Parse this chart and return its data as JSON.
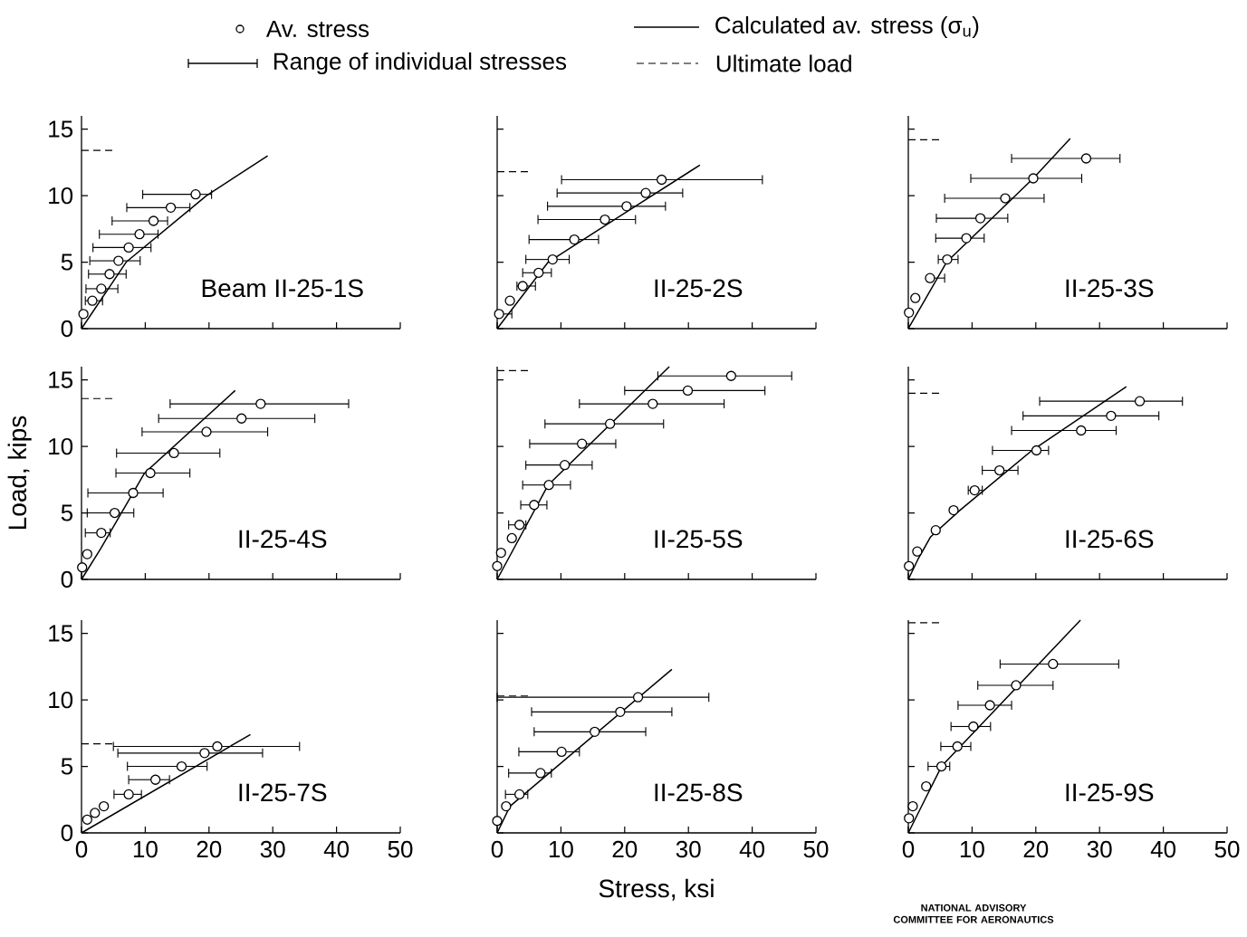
{
  "chart_data": [
    {
      "type": "scatter",
      "title": "Beam II-25-1S",
      "xlim": [
        0,
        50
      ],
      "ylim": [
        0,
        16
      ],
      "xticks": [
        0,
        10,
        20,
        30,
        40,
        50
      ],
      "yticks": [
        0,
        5,
        10,
        15
      ],
      "tick_labels": "y",
      "legend": "top",
      "annotations": [
        "Range of individual stresses"
      ],
      "series": [
        {
          "name": "Av. stress",
          "color": "#000000",
          "marker": "circle",
          "x": [
            0.3,
            1.7,
            3.1,
            4.4,
            5.8,
            7.4,
            9.1,
            11.3,
            14.0,
            17.9
          ],
          "values": [
            1.1,
            2.1,
            3.0,
            4.1,
            5.1,
            6.1,
            7.1,
            8.1,
            9.1,
            10.1
          ],
          "xerrors": [
            null,
            [
              0.6,
              3.3
            ],
            [
              0.7,
              5.7
            ],
            [
              1.1,
              7.0
            ],
            [
              1.3,
              9.2
            ],
            [
              1.8,
              10.9
            ],
            [
              2.8,
              12.0
            ],
            [
              4.8,
              13.5
            ],
            [
              7.1,
              17.0
            ],
            [
              9.6,
              20.4
            ]
          ]
        },
        {
          "name": "Calculated av. stress (σ$_{u}$)",
          "type": "line",
          "color": "#000000",
          "x": [
            0,
            7,
            19.6,
            29.2
          ],
          "values": [
            0,
            5,
            10,
            13
          ]
        }
      ],
      "ref_lines": [
        {
          "axis": "y",
          "value": 13.4,
          "label": "Ultimate load",
          "line_style": "dashed"
        }
      ]
    },
    {
      "type": "scatter",
      "title": "II-25-2S",
      "xlim": [
        0,
        50
      ],
      "ylim": [
        0,
        16
      ],
      "xticks": [
        0,
        10,
        20,
        30,
        40,
        50
      ],
      "yticks": [
        0,
        5,
        10,
        15
      ],
      "tick_labels": false,
      "series": [
        {
          "color": "#000000",
          "marker": "circle",
          "x": [
            0.3,
            2,
            4,
            6.5,
            8.7,
            12.1,
            16.9,
            20.3,
            23.3,
            25.8
          ],
          "values": [
            1.1,
            2.1,
            3.2,
            4.2,
            5.2,
            6.7,
            8.2,
            9.2,
            10.2,
            11.2
          ],
          "xerrors": [
            [
              0,
              2.3
            ],
            null,
            [
              3.1,
              6.0
            ],
            [
              4.0,
              8.5
            ],
            [
              4.5,
              11.3
            ],
            [
              5.0,
              15.9
            ],
            [
              6.4,
              21.7
            ],
            [
              7.9,
              26.4
            ],
            [
              9.4,
              29.1
            ],
            [
              10.1,
              41.6
            ]
          ]
        },
        {
          "type": "line",
          "color": "#000000",
          "x": [
            0,
            8,
            21,
            31.8
          ],
          "values": [
            0,
            5,
            9,
            12.3
          ]
        }
      ],
      "ref_lines": [
        {
          "axis": "y",
          "value": 11.8,
          "line_style": "dashed"
        }
      ]
    },
    {
      "type": "scatter",
      "title": "II-25-3S",
      "xlim": [
        0,
        50
      ],
      "ylim": [
        0,
        16
      ],
      "xticks": [
        0,
        10,
        20,
        30,
        40,
        50
      ],
      "yticks": [
        0,
        5,
        10,
        15
      ],
      "tick_labels": false,
      "series": [
        {
          "color": "#000000",
          "marker": "circle",
          "x": [
            0.1,
            1.1,
            3.4,
            6.1,
            9.1,
            11.3,
            15.2,
            19.6,
            27.9
          ],
          "values": [
            1.2,
            2.3,
            3.8,
            5.2,
            6.8,
            8.3,
            9.8,
            11.3,
            12.8
          ],
          "xerrors": [
            null,
            null,
            [
              3.5,
              5.7
            ],
            [
              4.7,
              7.8
            ],
            [
              4.3,
              11.9
            ],
            [
              4.4,
              15.6
            ],
            [
              5.7,
              21.3
            ],
            [
              9.8,
              27.2
            ],
            [
              16.2,
              33.2
            ]
          ]
        },
        {
          "type": "line",
          "color": "#000000",
          "x": [
            0,
            6,
            19.6,
            25.4
          ],
          "values": [
            0,
            5,
            11.3,
            14.3
          ]
        }
      ],
      "ref_lines": [
        {
          "axis": "y",
          "value": 14.2,
          "line_style": "dashed"
        }
      ]
    },
    {
      "type": "scatter",
      "title": "II-25-4S",
      "ylabel": "Load, kips",
      "xlim": [
        0,
        50
      ],
      "ylim": [
        0,
        16
      ],
      "xticks": [
        0,
        10,
        20,
        30,
        40,
        50
      ],
      "yticks": [
        0,
        5,
        10,
        15
      ],
      "tick_labels": "y",
      "series": [
        {
          "color": "#000000",
          "marker": "circle",
          "x": [
            0.1,
            0.9,
            3.1,
            5.2,
            8.1,
            10.8,
            14.5,
            19.6,
            25.1,
            28.1
          ],
          "values": [
            0.9,
            1.9,
            3.5,
            5.0,
            6.5,
            8.0,
            9.5,
            11.1,
            12.1,
            13.2
          ],
          "xerrors": [
            null,
            null,
            [
              0.6,
              4.5
            ],
            [
              0.9,
              8.2
            ],
            [
              1.0,
              12.8
            ],
            [
              5.4,
              17.0
            ],
            [
              5.5,
              21.7
            ],
            [
              9.5,
              29.2
            ],
            [
              12.1,
              36.6
            ],
            [
              13.9,
              41.9
            ]
          ]
        },
        {
          "type": "line",
          "color": "#000000",
          "x": [
            0,
            3,
            9.9,
            24.1
          ],
          "values": [
            0,
            2.3,
            8,
            14.2
          ]
        }
      ],
      "ref_lines": [
        {
          "axis": "y",
          "value": 13.6,
          "line_style": "dashed"
        }
      ]
    },
    {
      "type": "scatter",
      "title": "II-25-5S",
      "xlim": [
        0,
        50
      ],
      "ylim": [
        0,
        16
      ],
      "xticks": [
        0,
        10,
        20,
        30,
        40,
        50
      ],
      "yticks": [
        0,
        5,
        10,
        15
      ],
      "tick_labels": false,
      "series": [
        {
          "color": "#000000",
          "marker": "circle",
          "x": [
            0,
            0.6,
            2.3,
            3.5,
            5.8,
            8.1,
            10.6,
            13.3,
            17.7,
            24.4,
            29.9,
            36.7
          ],
          "values": [
            1.0,
            2.0,
            3.1,
            4.1,
            5.6,
            7.1,
            8.6,
            10.2,
            11.7,
            13.2,
            14.2,
            15.3
          ],
          "xerrors": [
            null,
            null,
            null,
            [
              1.8,
              4.5
            ],
            [
              3.7,
              7.8
            ],
            [
              4.0,
              11.5
            ],
            [
              4.5,
              14.9
            ],
            [
              5.1,
              18.6
            ],
            [
              7.5,
              26.1
            ],
            [
              12.9,
              35.6
            ],
            [
              20.0,
              42.0
            ],
            [
              25.2,
              46.2
            ]
          ]
        },
        {
          "type": "line",
          "color": "#000000",
          "x": [
            0,
            8,
            27
          ],
          "values": [
            0,
            7.1,
            16
          ]
        }
      ],
      "ref_lines": [
        {
          "axis": "y",
          "value": 15.7,
          "line_style": "dashed"
        }
      ]
    },
    {
      "type": "scatter",
      "title": "II-25-6S",
      "xlim": [
        0,
        50
      ],
      "ylim": [
        0,
        16
      ],
      "xticks": [
        0,
        10,
        20,
        30,
        40,
        50
      ],
      "yticks": [
        0,
        5,
        10,
        15
      ],
      "tick_labels": false,
      "series": [
        {
          "color": "#000000",
          "marker": "circle",
          "x": [
            0.1,
            1.4,
            4.3,
            7.1,
            10.4,
            14.3,
            20.1,
            27.1,
            31.8,
            36.3
          ],
          "values": [
            1.0,
            2.1,
            3.7,
            5.2,
            6.7,
            8.2,
            9.7,
            11.2,
            12.3,
            13.4
          ],
          "xerrors": [
            null,
            null,
            null,
            null,
            [
              9.4,
              11.6
            ],
            [
              11.6,
              17.2
            ],
            [
              13.2,
              22.0
            ],
            [
              16.2,
              32.6
            ],
            [
              18.0,
              39.3
            ],
            [
              20.6,
              43.0
            ]
          ]
        },
        {
          "type": "line",
          "color": "#000000",
          "x": [
            0,
            1.5,
            3.5,
            8.1,
            19.4,
            34.2
          ],
          "values": [
            0,
            1.5,
            3.2,
            5.2,
            9.7,
            14.5
          ]
        }
      ],
      "ref_lines": [
        {
          "axis": "y",
          "value": 14.0,
          "line_style": "dashed"
        }
      ]
    },
    {
      "type": "scatter",
      "title": "II-25-7S",
      "xlim": [
        0,
        50
      ],
      "ylim": [
        0,
        16
      ],
      "xticks": [
        0,
        10,
        20,
        30,
        40,
        50
      ],
      "yticks": [
        0,
        5,
        10,
        15
      ],
      "series": [
        {
          "color": "#000000",
          "marker": "circle",
          "x": [
            0.9,
            2.1,
            3.5,
            7.4,
            11.6,
            15.7,
            19.3,
            21.3
          ],
          "values": [
            1.0,
            1.5,
            2.0,
            2.9,
            4.0,
            5.0,
            6.0,
            6.5
          ],
          "xerrors": [
            null,
            null,
            null,
            [
              5.1,
              9.4
            ],
            [
              7.4,
              13.8
            ],
            [
              7.2,
              19.7
            ],
            [
              5.7,
              28.4
            ],
            [
              5.0,
              34.2
            ]
          ]
        },
        {
          "type": "line",
          "color": "#000000",
          "x": [
            0,
            26.5
          ],
          "values": [
            0,
            7.4
          ]
        }
      ],
      "ref_lines": [
        {
          "axis": "y",
          "value": 6.7,
          "line_style": "dashed"
        }
      ]
    },
    {
      "type": "scatter",
      "title": "II-25-8S",
      "xlabel": "Stress, ksi",
      "xlim": [
        0,
        50
      ],
      "ylim": [
        0,
        16
      ],
      "xticks": [
        0,
        10,
        20,
        30,
        40,
        50
      ],
      "yticks": [
        0,
        5,
        10,
        15
      ],
      "tick_labels": "x",
      "series": [
        {
          "color": "#000000",
          "marker": "circle",
          "x": [
            0,
            1.4,
            3.5,
            6.8,
            10.1,
            15.3,
            19.3,
            22.1
          ],
          "values": [
            0.9,
            2.0,
            2.9,
            4.5,
            6.1,
            7.6,
            9.1,
            10.2
          ],
          "xerrors": [
            null,
            null,
            [
              1.3,
              4.8
            ],
            [
              1.8,
              8.5
            ],
            [
              3.4,
              12.9
            ],
            [
              5.8,
              23.3
            ],
            [
              5.4,
              27.4
            ],
            [
              0,
              33.2
            ]
          ]
        },
        {
          "type": "line",
          "color": "#000000",
          "x": [
            0,
            2,
            27.4
          ],
          "values": [
            0,
            2,
            12.3
          ]
        }
      ],
      "ref_lines": [
        {
          "axis": "y",
          "value": 10.3,
          "line_style": "dashed"
        }
      ]
    },
    {
      "type": "scatter",
      "title": "II-25-9S",
      "xlim": [
        0,
        50
      ],
      "ylim": [
        0,
        16
      ],
      "xticks": [
        0,
        10,
        20,
        30,
        40,
        50
      ],
      "yticks": [
        0,
        5,
        10,
        15
      ],
      "tick_labels": "x",
      "annotations": [
        "NATIONAL ADVISORY COMMITTEE FOR AERONAUTICS"
      ],
      "series": [
        {
          "color": "#000000",
          "marker": "circle",
          "x": [
            0.1,
            0.7,
            2.8,
            5.2,
            7.7,
            10.2,
            12.8,
            16.9,
            22.7
          ],
          "values": [
            1.1,
            2.0,
            3.5,
            5.0,
            6.5,
            8.0,
            9.6,
            11.1,
            12.7
          ],
          "xerrors": [
            null,
            null,
            null,
            [
              3.1,
              6.5
            ],
            [
              5.1,
              9.8
            ],
            [
              6.7,
              12.9
            ],
            [
              7.8,
              16.2
            ],
            [
              10.9,
              22.7
            ],
            [
              14.4,
              33.0
            ]
          ]
        },
        {
          "type": "line",
          "color": "#000000",
          "x": [
            0,
            5.2,
            27
          ],
          "values": [
            0,
            5,
            16
          ]
        }
      ],
      "ref_lines": [
        {
          "axis": "y",
          "value": 15.8,
          "line_style": "dashed"
        }
      ]
    }
  ]
}
